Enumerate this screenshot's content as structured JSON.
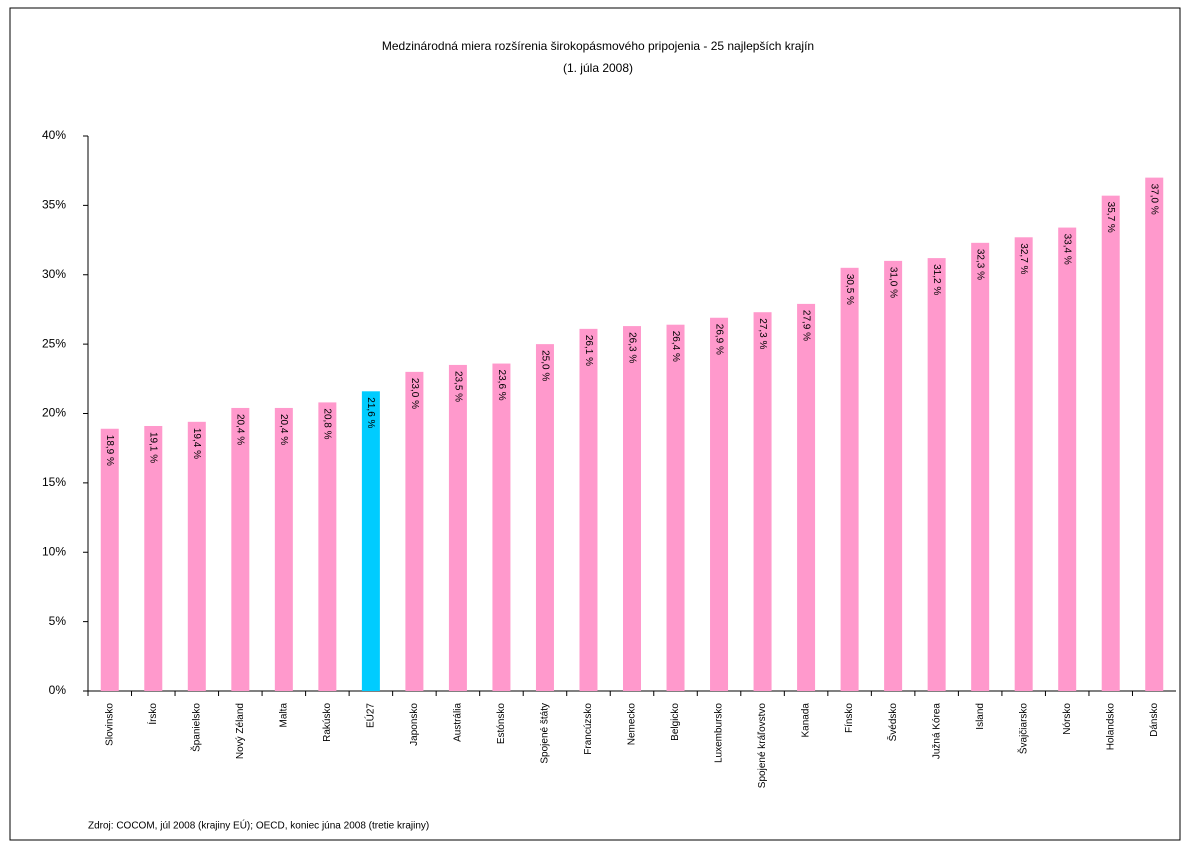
{
  "chart_data": {
    "type": "bar",
    "title": "Medzinárodná miera rozšírenia širokopásmového pripojenia - 25 najlepších krajín",
    "subtitle": "(1. júla 2008)",
    "source": "Zdroj: COCOM, júl 2008 (krajiny EÚ); OECD, koniec júna 2008 (tretie krajiny)",
    "categories": [
      "Slovinsko",
      "Írsko",
      "Španielsko",
      "Nový Zéland",
      "Malta",
      "Rakúsko",
      "EÚ27",
      "Japonsko",
      "Austrália",
      "Estónsko",
      "Spojené štáty",
      "Francúzsko",
      "Nemecko",
      "Belgicko",
      "Luxembursko",
      "Spojené kráľovstvo",
      "Kanada",
      "Fínsko",
      "Švédsko",
      "Južná Kórea",
      "Island",
      "Švajčiarsko",
      "Nórsko",
      "Holandsko",
      "Dánsko"
    ],
    "values": [
      18.9,
      19.1,
      19.4,
      20.4,
      20.4,
      20.8,
      21.6,
      23.0,
      23.5,
      23.6,
      25.0,
      26.1,
      26.3,
      26.4,
      26.9,
      27.3,
      27.9,
      30.5,
      31.0,
      31.2,
      32.3,
      32.7,
      33.4,
      35.7,
      37.0
    ],
    "value_labels": [
      "18,9 %",
      "19,1 %",
      "19,4 %",
      "20,4 %",
      "20,4 %",
      "20,8 %",
      "21,6 %",
      "23,0 %",
      "23,5 %",
      "23,6 %",
      "25,0 %",
      "26,1 %",
      "26,3 %",
      "26,4 %",
      "26,9 %",
      "27,3 %",
      "27,9 %",
      "30,5 %",
      "31,0 %",
      "31,2 %",
      "32,3 %",
      "32,7 %",
      "33,4 %",
      "35,7 %",
      "37,0 %"
    ],
    "colors": [
      "#ff99cc",
      "#ff99cc",
      "#ff99cc",
      "#ff99cc",
      "#ff99cc",
      "#ff99cc",
      "#00ccff",
      "#ff99cc",
      "#ff99cc",
      "#ff99cc",
      "#ff99cc",
      "#ff99cc",
      "#ff99cc",
      "#ff99cc",
      "#ff99cc",
      "#ff99cc",
      "#ff99cc",
      "#ff99cc",
      "#ff99cc",
      "#ff99cc",
      "#ff99cc",
      "#ff99cc",
      "#ff99cc",
      "#ff99cc",
      "#ff99cc"
    ],
    "ylim": [
      0,
      40
    ],
    "yticks": [
      {
        "value": 0,
        "label": "0%"
      },
      {
        "value": 5,
        "label": "5%"
      },
      {
        "value": 10,
        "label": "10%"
      },
      {
        "value": 15,
        "label": "15%"
      },
      {
        "value": 20,
        "label": "20%"
      },
      {
        "value": 25,
        "label": "25%"
      },
      {
        "value": 30,
        "label": "30%"
      },
      {
        "value": 35,
        "label": "35%"
      },
      {
        "value": 40,
        "label": "40%"
      }
    ],
    "grid": false
  }
}
